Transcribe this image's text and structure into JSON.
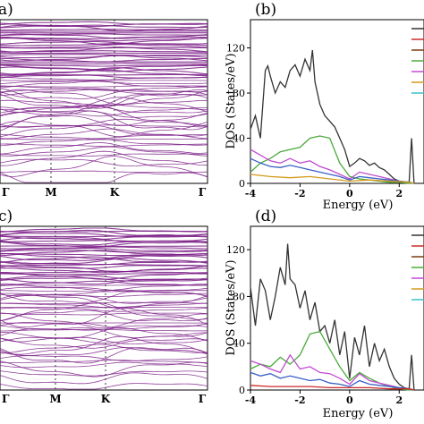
{
  "panel_labels": [
    "a)",
    "(b)",
    "c)",
    "(d)"
  ],
  "colors": {
    "band": "#7a1d86",
    "dashed": "#333333",
    "dos_total": "#333333",
    "dos_green": "#4aaa3a",
    "dos_violet": "#c04ad0",
    "dos_blue": "#3a5fc8",
    "dos_orange": "#d39a1a",
    "dos_red": "#cc2a2a",
    "dos_cyan": "#3ac0c8",
    "dos_olive": "#9a9a22"
  },
  "legend_swatch_colors": [
    "#333333",
    "#cc2a2a",
    "#7a3a10",
    "#4aaa3a",
    "#c04ad0",
    "#d39a1a",
    "#3ac0c8"
  ],
  "chart_data": [
    {
      "panel": "a)",
      "type": "line",
      "kpath_labels": [
        "Γ",
        "M",
        "K",
        "Γ"
      ],
      "kpath_positions": [
        0,
        1,
        2,
        3.7
      ],
      "ylabel": "",
      "series_description": "band structure lines",
      "lines_region": [
        0.2,
        1.0
      ]
    },
    {
      "panel": "(b)",
      "type": "line",
      "xlabel": "Energy (eV)",
      "ylabel": "DOS (States/eV)",
      "xlim": [
        -4,
        3
      ],
      "ylim": [
        0,
        145
      ],
      "xticks": [
        -4,
        -2,
        0,
        2
      ],
      "yticks": [
        0,
        40,
        80,
        120
      ],
      "series": [
        {
          "color": "dos_total",
          "x": [
            -4,
            -3.8,
            -3.6,
            -3.4,
            -3.3,
            -3.2,
            -3.0,
            -2.8,
            -2.6,
            -2.4,
            -2.2,
            -2.0,
            -1.8,
            -1.6,
            -1.5,
            -1.4,
            -1.2,
            -1.0,
            -0.8,
            -0.6,
            -0.4,
            -0.2,
            0,
            0.2,
            0.4,
            0.6,
            0.8,
            1.0,
            1.2,
            1.4,
            1.6,
            1.8,
            2.0,
            2.2,
            2.4,
            2.5,
            2.6
          ],
          "y": [
            48,
            60,
            40,
            100,
            104,
            95,
            80,
            90,
            85,
            100,
            105,
            95,
            110,
            100,
            118,
            90,
            70,
            60,
            55,
            50,
            40,
            30,
            15,
            18,
            22,
            20,
            16,
            18,
            14,
            12,
            8,
            4,
            2,
            1,
            1,
            40,
            0
          ]
        },
        {
          "color": "dos_green",
          "x": [
            -4,
            -3.6,
            -3.2,
            -2.8,
            -2.4,
            -2.0,
            -1.6,
            -1.2,
            -0.8,
            -0.4,
            0,
            0.4,
            0.8,
            1.2,
            1.6,
            2.0,
            2.4,
            2.6
          ],
          "y": [
            10,
            18,
            22,
            28,
            30,
            32,
            40,
            42,
            40,
            18,
            6,
            4,
            3,
            2,
            1,
            1,
            0,
            0
          ]
        },
        {
          "color": "dos_violet",
          "x": [
            -4,
            -3.6,
            -3.2,
            -2.8,
            -2.4,
            -2.0,
            -1.6,
            -1.2,
            -0.8,
            -0.4,
            0,
            0.4,
            0.8,
            1.2,
            1.6,
            2.0,
            2.4,
            2.6
          ],
          "y": [
            30,
            25,
            20,
            18,
            22,
            18,
            20,
            15,
            12,
            8,
            4,
            10,
            8,
            6,
            4,
            2,
            1,
            0
          ]
        },
        {
          "color": "dos_blue",
          "x": [
            -4,
            -3.6,
            -3.2,
            -2.8,
            -2.4,
            -2.0,
            -1.6,
            -1.2,
            -0.8,
            -0.4,
            0,
            0.4,
            0.8,
            1.2,
            1.6,
            2.0,
            2.4,
            2.6
          ],
          "y": [
            22,
            18,
            15,
            14,
            16,
            14,
            12,
            10,
            8,
            6,
            3,
            6,
            5,
            4,
            3,
            2,
            1,
            0
          ]
        },
        {
          "color": "dos_orange",
          "x": [
            -4,
            -3.2,
            -2.4,
            -1.6,
            -0.8,
            0,
            0.8,
            1.6,
            2.4,
            2.6
          ],
          "y": [
            8,
            6,
            5,
            6,
            4,
            2,
            3,
            2,
            1,
            0
          ]
        }
      ]
    },
    {
      "panel": "c)",
      "type": "line",
      "kpath_labels": [
        "Γ",
        "M",
        "K",
        "Γ"
      ],
      "kpath_positions": [
        0,
        1,
        2,
        3.7
      ],
      "ylabel": "",
      "series_description": "band structure lines",
      "lines_region": [
        0.15,
        1.0
      ]
    },
    {
      "panel": "(d)",
      "type": "line",
      "xlabel": "Energy (eV)",
      "ylabel": "DOS (States/eV)",
      "xlim": [
        -4,
        3
      ],
      "ylim": [
        0,
        140
      ],
      "xticks": [
        -4,
        -2,
        0,
        2
      ],
      "yticks": [
        0,
        40,
        80,
        120
      ],
      "series": [
        {
          "color": "dos_total",
          "x": [
            -4,
            -3.8,
            -3.6,
            -3.4,
            -3.2,
            -3.0,
            -2.8,
            -2.6,
            -2.5,
            -2.4,
            -2.2,
            -2.0,
            -1.8,
            -1.6,
            -1.4,
            -1.2,
            -1.0,
            -0.8,
            -0.6,
            -0.4,
            -0.2,
            0,
            0.2,
            0.4,
            0.6,
            0.8,
            1.0,
            1.2,
            1.4,
            1.6,
            1.8,
            2.0,
            2.2,
            2.4,
            2.5,
            2.6
          ],
          "y": [
            88,
            55,
            95,
            85,
            60,
            80,
            105,
            90,
            125,
            95,
            90,
            70,
            85,
            60,
            75,
            50,
            55,
            40,
            60,
            30,
            50,
            10,
            45,
            30,
            55,
            20,
            40,
            25,
            35,
            20,
            10,
            5,
            2,
            1,
            30,
            0
          ]
        },
        {
          "color": "dos_green",
          "x": [
            -4,
            -3.6,
            -3.2,
            -2.8,
            -2.4,
            -2.0,
            -1.6,
            -1.2,
            -0.8,
            -0.4,
            0,
            0.4,
            0.8,
            1.2,
            1.6,
            2.0,
            2.4,
            2.6
          ],
          "y": [
            18,
            22,
            20,
            28,
            22,
            30,
            48,
            50,
            35,
            20,
            8,
            15,
            10,
            6,
            3,
            1,
            0,
            0
          ]
        },
        {
          "color": "dos_violet",
          "x": [
            -4,
            -3.6,
            -3.2,
            -2.8,
            -2.4,
            -2.0,
            -1.6,
            -1.2,
            -0.8,
            -0.4,
            0,
            0.4,
            0.8,
            1.2,
            1.6,
            2.0,
            2.4,
            2.6
          ],
          "y": [
            25,
            22,
            18,
            15,
            30,
            18,
            20,
            15,
            14,
            10,
            5,
            14,
            8,
            6,
            4,
            2,
            1,
            0
          ]
        },
        {
          "color": "dos_blue",
          "x": [
            -4,
            -3.6,
            -3.2,
            -2.8,
            -2.4,
            -2.0,
            -1.6,
            -1.2,
            -0.8,
            -0.4,
            0,
            0.4,
            0.8,
            1.2,
            1.6,
            2.0,
            2.4,
            2.6
          ],
          "y": [
            15,
            12,
            14,
            10,
            12,
            10,
            8,
            9,
            6,
            5,
            3,
            8,
            5,
            4,
            3,
            2,
            1,
            0
          ]
        },
        {
          "color": "dos_red",
          "x": [
            -4,
            -3.2,
            -2.4,
            -1.6,
            -0.8,
            0,
            0.8,
            1.6,
            2.4,
            2.6
          ],
          "y": [
            4,
            3,
            3,
            3,
            2,
            2,
            2,
            1,
            1,
            0
          ]
        }
      ]
    }
  ]
}
